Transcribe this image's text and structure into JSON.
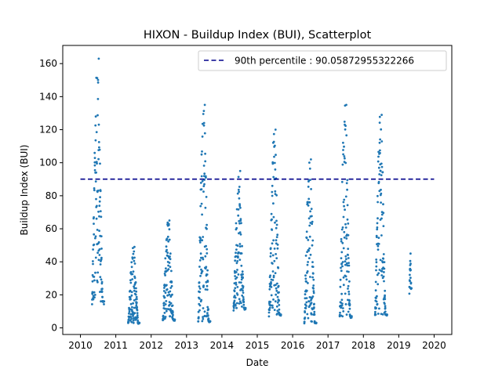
{
  "chart_data": {
    "type": "scatter",
    "title": "HIXON - Buildup Index (BUI), Scatterplot",
    "xlabel": "Date",
    "ylabel": "Buildup Index (BUI)",
    "xlim": [
      2009.5,
      2020.5
    ],
    "ylim": [
      -4,
      171
    ],
    "x_ticks": [
      2010,
      2011,
      2012,
      2013,
      2014,
      2015,
      2016,
      2017,
      2018,
      2019,
      2020
    ],
    "x_tick_labels": [
      "2010",
      "2011",
      "2012",
      "2013",
      "2014",
      "2015",
      "2016",
      "2017",
      "2018",
      "2019",
      "2020"
    ],
    "y_ticks": [
      0,
      20,
      40,
      60,
      80,
      100,
      120,
      140,
      160
    ],
    "y_tick_labels": [
      "0",
      "20",
      "40",
      "60",
      "80",
      "100",
      "120",
      "140",
      "160"
    ],
    "point_color": "#1f77b4",
    "line_color": "#00008b",
    "grid": false,
    "legend_placement": "top-right",
    "reference_line": {
      "label": "90th percentile : 90.05872955322266",
      "y": 90.05872955322266,
      "x_range": [
        2010.0,
        2020.0
      ],
      "style": "dashed"
    },
    "series": [
      {
        "season_clusters": [
          {
            "year": 2010,
            "x_range": [
              2010.33,
              2010.67
            ],
            "peak": 163,
            "min": 16
          },
          {
            "year": 2011,
            "x_range": [
              2011.35,
              2011.67
            ],
            "peak": 49,
            "min": 3
          },
          {
            "year": 2012,
            "x_range": [
              2012.33,
              2012.67
            ],
            "peak": 65,
            "min": 5
          },
          {
            "year": 2013,
            "x_range": [
              2013.33,
              2013.67
            ],
            "peak": 135,
            "min": 4
          },
          {
            "year": 2014,
            "x_range": [
              2014.33,
              2014.67
            ],
            "peak": 95,
            "min": 12
          },
          {
            "year": 2015,
            "x_range": [
              2015.33,
              2015.67
            ],
            "peak": 120,
            "min": 8
          },
          {
            "year": 2016,
            "x_range": [
              2016.33,
              2016.67
            ],
            "peak": 102,
            "min": 3
          },
          {
            "year": 2017,
            "x_range": [
              2017.33,
              2017.67
            ],
            "peak": 135,
            "min": 7
          },
          {
            "year": 2018,
            "x_range": [
              2018.33,
              2018.67
            ],
            "peak": 129,
            "min": 8
          },
          {
            "year": 2019,
            "x_range": [
              2019.3,
              2019.36
            ],
            "peak": 45,
            "min": 24
          }
        ]
      }
    ]
  }
}
